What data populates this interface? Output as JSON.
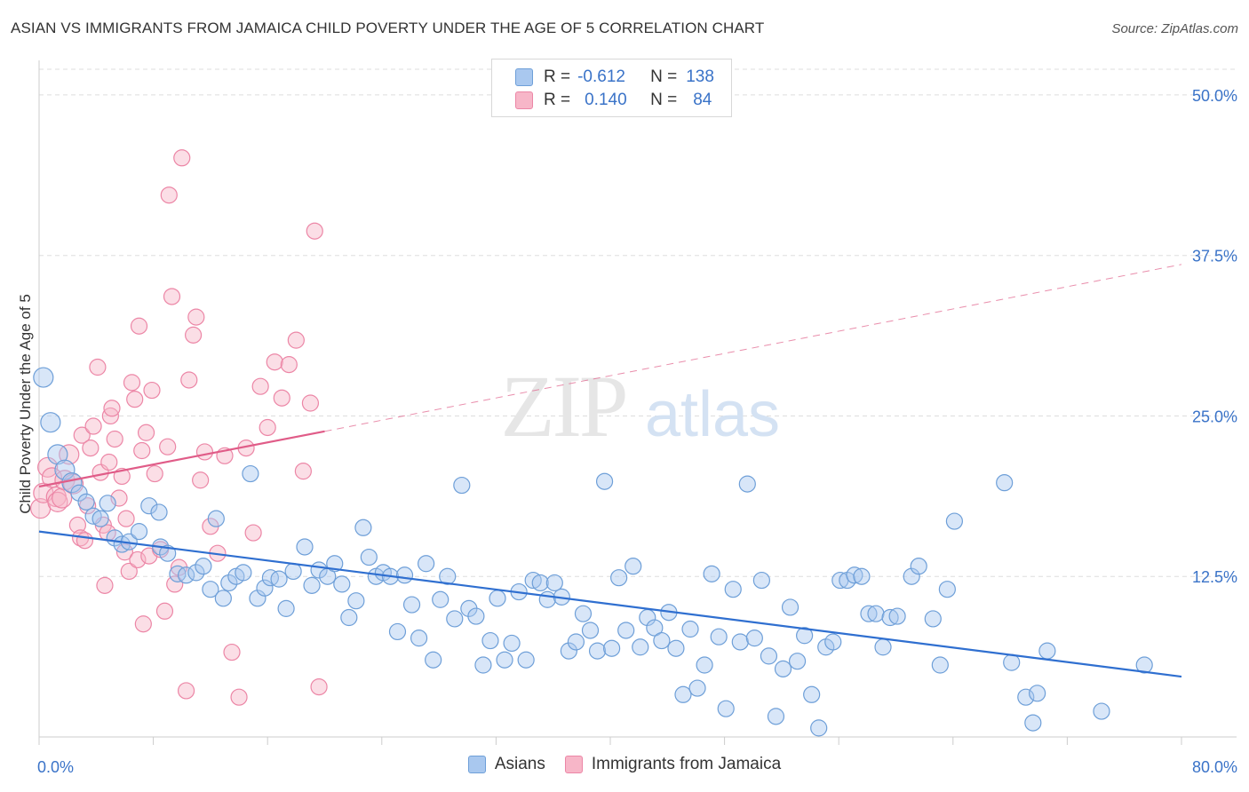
{
  "title": "ASIAN VS IMMIGRANTS FROM JAMAICA CHILD POVERTY UNDER THE AGE OF 5 CORRELATION CHART",
  "source": "Source: ZipAtlas.com",
  "watermark": {
    "zip": "ZIP",
    "atlas": "atlas"
  },
  "legend_top": {
    "rows": [
      {
        "r_label": "R =",
        "r_value": "-0.612",
        "n_label": "N =",
        "n_value": "138"
      },
      {
        "r_label": "R =",
        "r_value": "0.140",
        "n_label": "N =",
        "n_value": "84"
      }
    ]
  },
  "colors": {
    "asians_fill": "#a9c8ef",
    "asians_stroke": "#6e9fd8",
    "asians_line": "#2f6fd0",
    "jamaica_fill": "#f7b6c8",
    "jamaica_stroke": "#ec86a6",
    "jamaica_line": "#e05c88",
    "tick_label": "#3a73c8",
    "grid": "#dddddd"
  },
  "chart_data": {
    "type": "scatter",
    "title": "ASIAN VS IMMIGRANTS FROM JAMAICA CHILD POVERTY UNDER THE AGE OF 5 CORRELATION CHART",
    "xlabel": "",
    "ylabel": "Child Poverty Under the Age of 5",
    "xlim": [
      0,
      80
    ],
    "ylim": [
      0,
      52
    ],
    "x_tick_labels": [
      "0.0%",
      "80.0%"
    ],
    "y_ticks": [
      12.5,
      25,
      37.5,
      50
    ],
    "y_tick_labels": [
      "12.5%",
      "25.0%",
      "37.5%",
      "50.0%"
    ],
    "grid": true,
    "legend_placement": "top-center and bottom",
    "series": [
      {
        "name": "Asians",
        "trend": {
          "x": [
            0,
            80
          ],
          "y": [
            16.0,
            4.7
          ]
        },
        "points": [
          [
            0.3,
            28.0
          ],
          [
            0.8,
            24.5
          ],
          [
            1.3,
            22.0
          ],
          [
            1.8,
            20.8
          ],
          [
            2.3,
            19.8
          ],
          [
            2.8,
            19.0
          ],
          [
            3.3,
            18.3
          ],
          [
            3.8,
            17.2
          ],
          [
            4.3,
            17.0
          ],
          [
            4.8,
            18.2
          ],
          [
            5.3,
            15.5
          ],
          [
            5.8,
            15.0
          ],
          [
            6.3,
            15.2
          ],
          [
            7.0,
            16.0
          ],
          [
            7.7,
            18.0
          ],
          [
            8.4,
            17.5
          ],
          [
            8.5,
            14.8
          ],
          [
            9.0,
            14.3
          ],
          [
            9.7,
            12.7
          ],
          [
            10.3,
            12.6
          ],
          [
            11.0,
            12.8
          ],
          [
            11.5,
            13.3
          ],
          [
            12.0,
            11.5
          ],
          [
            12.4,
            17.0
          ],
          [
            12.9,
            10.8
          ],
          [
            13.3,
            12.0
          ],
          [
            13.8,
            12.5
          ],
          [
            14.3,
            12.8
          ],
          [
            14.8,
            20.5
          ],
          [
            15.3,
            10.8
          ],
          [
            15.8,
            11.6
          ],
          [
            16.2,
            12.4
          ],
          [
            16.8,
            12.3
          ],
          [
            17.3,
            10.0
          ],
          [
            17.8,
            12.9
          ],
          [
            18.6,
            14.8
          ],
          [
            19.1,
            11.8
          ],
          [
            19.6,
            13.0
          ],
          [
            20.2,
            12.5
          ],
          [
            20.7,
            13.5
          ],
          [
            21.2,
            11.9
          ],
          [
            21.7,
            9.3
          ],
          [
            22.2,
            10.6
          ],
          [
            22.7,
            16.3
          ],
          [
            23.1,
            14.0
          ],
          [
            23.6,
            12.5
          ],
          [
            24.1,
            12.8
          ],
          [
            24.6,
            12.5
          ],
          [
            25.1,
            8.2
          ],
          [
            25.6,
            12.6
          ],
          [
            26.1,
            10.3
          ],
          [
            26.6,
            7.7
          ],
          [
            27.1,
            13.5
          ],
          [
            27.6,
            6.0
          ],
          [
            28.1,
            10.7
          ],
          [
            28.6,
            12.5
          ],
          [
            29.1,
            9.2
          ],
          [
            29.6,
            19.6
          ],
          [
            30.1,
            10.0
          ],
          [
            30.6,
            9.4
          ],
          [
            31.1,
            5.6
          ],
          [
            31.6,
            7.5
          ],
          [
            32.1,
            10.8
          ],
          [
            32.6,
            6.0
          ],
          [
            33.1,
            7.3
          ],
          [
            33.6,
            11.3
          ],
          [
            34.1,
            6.0
          ],
          [
            34.6,
            12.2
          ],
          [
            35.1,
            12.0
          ],
          [
            35.6,
            10.7
          ],
          [
            36.1,
            12.0
          ],
          [
            36.6,
            10.9
          ],
          [
            37.1,
            6.7
          ],
          [
            37.6,
            7.4
          ],
          [
            38.1,
            9.6
          ],
          [
            38.6,
            8.3
          ],
          [
            39.1,
            6.7
          ],
          [
            39.6,
            19.9
          ],
          [
            40.1,
            6.9
          ],
          [
            40.6,
            12.4
          ],
          [
            41.1,
            8.3
          ],
          [
            41.6,
            13.3
          ],
          [
            42.1,
            7.0
          ],
          [
            42.6,
            9.3
          ],
          [
            43.1,
            8.5
          ],
          [
            43.6,
            7.5
          ],
          [
            44.1,
            9.7
          ],
          [
            44.6,
            6.9
          ],
          [
            45.1,
            3.3
          ],
          [
            45.6,
            8.4
          ],
          [
            46.1,
            3.8
          ],
          [
            46.6,
            5.6
          ],
          [
            47.1,
            12.7
          ],
          [
            47.6,
            7.8
          ],
          [
            48.1,
            2.2
          ],
          [
            48.6,
            11.5
          ],
          [
            49.1,
            7.4
          ],
          [
            49.6,
            19.7
          ],
          [
            50.1,
            7.7
          ],
          [
            50.6,
            12.2
          ],
          [
            51.1,
            6.3
          ],
          [
            51.6,
            1.6
          ],
          [
            52.1,
            5.3
          ],
          [
            52.6,
            10.1
          ],
          [
            53.1,
            5.9
          ],
          [
            53.6,
            7.9
          ],
          [
            54.1,
            3.3
          ],
          [
            54.6,
            0.7
          ],
          [
            55.1,
            7.0
          ],
          [
            55.6,
            7.4
          ],
          [
            56.1,
            12.2
          ],
          [
            56.6,
            12.2
          ],
          [
            57.1,
            12.6
          ],
          [
            57.6,
            12.5
          ],
          [
            58.1,
            9.6
          ],
          [
            58.6,
            9.6
          ],
          [
            59.1,
            7.0
          ],
          [
            59.6,
            9.3
          ],
          [
            60.1,
            9.4
          ],
          [
            61.1,
            12.5
          ],
          [
            61.6,
            13.3
          ],
          [
            62.6,
            9.2
          ],
          [
            63.1,
            5.6
          ],
          [
            63.6,
            11.5
          ],
          [
            64.1,
            16.8
          ],
          [
            67.6,
            19.8
          ],
          [
            68.1,
            5.8
          ],
          [
            69.1,
            3.1
          ],
          [
            69.6,
            1.1
          ],
          [
            69.9,
            3.4
          ],
          [
            70.6,
            6.7
          ],
          [
            74.4,
            2.0
          ],
          [
            77.4,
            5.6
          ]
        ]
      },
      {
        "name": "Immigrants from Jamaica",
        "trend": {
          "x": [
            0,
            20.0,
            80
          ],
          "y": [
            19.5,
            23.8,
            36.8
          ]
        },
        "points": [
          [
            0.1,
            17.8
          ],
          [
            0.3,
            19.0
          ],
          [
            0.6,
            21.0
          ],
          [
            0.9,
            20.2
          ],
          [
            1.2,
            18.7
          ],
          [
            1.3,
            18.3
          ],
          [
            1.6,
            18.6
          ],
          [
            1.8,
            20.0
          ],
          [
            2.1,
            22.0
          ],
          [
            2.4,
            19.7
          ],
          [
            2.7,
            16.5
          ],
          [
            2.9,
            15.5
          ],
          [
            3.0,
            23.5
          ],
          [
            3.2,
            15.3
          ],
          [
            3.4,
            18.0
          ],
          [
            3.6,
            22.5
          ],
          [
            3.8,
            24.2
          ],
          [
            4.1,
            28.8
          ],
          [
            4.3,
            20.6
          ],
          [
            4.5,
            16.5
          ],
          [
            4.6,
            11.8
          ],
          [
            4.8,
            15.9
          ],
          [
            4.9,
            21.4
          ],
          [
            5.0,
            25.0
          ],
          [
            5.1,
            25.6
          ],
          [
            5.3,
            23.2
          ],
          [
            5.6,
            18.6
          ],
          [
            5.8,
            20.3
          ],
          [
            6.0,
            14.4
          ],
          [
            6.1,
            17.0
          ],
          [
            6.3,
            12.9
          ],
          [
            6.5,
            27.6
          ],
          [
            6.7,
            26.3
          ],
          [
            6.9,
            13.8
          ],
          [
            7.0,
            32.0
          ],
          [
            7.2,
            22.3
          ],
          [
            7.3,
            8.8
          ],
          [
            7.5,
            23.7
          ],
          [
            7.7,
            14.1
          ],
          [
            7.9,
            27.0
          ],
          [
            8.1,
            20.5
          ],
          [
            8.5,
            14.6
          ],
          [
            8.8,
            9.8
          ],
          [
            9.0,
            22.6
          ],
          [
            9.1,
            42.2
          ],
          [
            9.3,
            34.3
          ],
          [
            9.5,
            11.9
          ],
          [
            9.8,
            13.2
          ],
          [
            10.0,
            45.1
          ],
          [
            10.3,
            3.6
          ],
          [
            10.5,
            27.8
          ],
          [
            10.8,
            31.3
          ],
          [
            11.0,
            32.7
          ],
          [
            11.3,
            20.0
          ],
          [
            11.6,
            22.2
          ],
          [
            12.0,
            16.4
          ],
          [
            12.5,
            14.3
          ],
          [
            13.0,
            21.9
          ],
          [
            13.5,
            6.6
          ],
          [
            14.0,
            3.1
          ],
          [
            14.5,
            22.5
          ],
          [
            15.0,
            15.9
          ],
          [
            15.5,
            27.3
          ],
          [
            16.0,
            24.1
          ],
          [
            16.5,
            29.2
          ],
          [
            17.0,
            26.4
          ],
          [
            17.5,
            29.0
          ],
          [
            18.0,
            30.9
          ],
          [
            18.5,
            20.7
          ],
          [
            19.0,
            26.0
          ],
          [
            19.3,
            39.4
          ],
          [
            19.6,
            3.9
          ]
        ]
      }
    ]
  }
}
